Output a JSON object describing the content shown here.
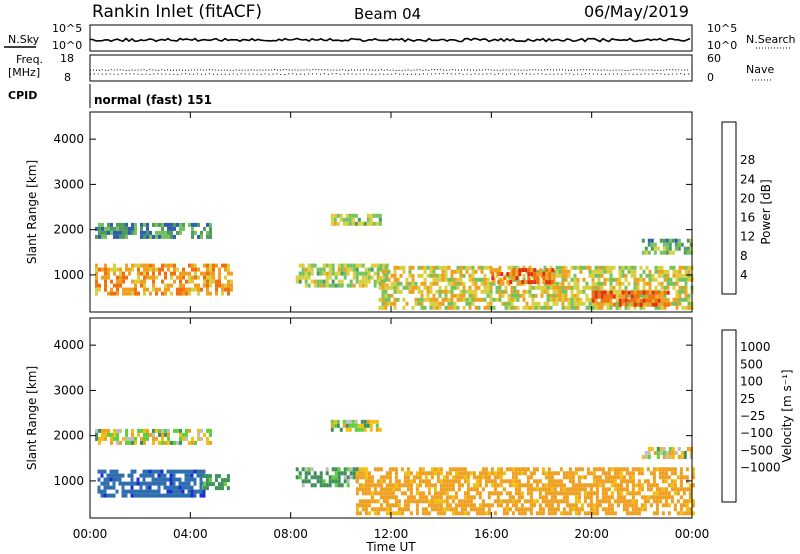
{
  "header": {
    "station": "Rankin Inlet (fitACF)",
    "beam": "Beam 04",
    "date": "06/May/2019"
  },
  "strip_labels": {
    "nsky": "N.Sky",
    "nsky_top": "10^5",
    "nsky_bottom": "10^0",
    "nsearch": "N.Search",
    "nsearch_top": "10^5",
    "nsearch_bottom": "10^0",
    "freq_line1": "Freq.",
    "freq_line2": "[MHz]",
    "freq_top": "18",
    "freq_bottom": "8",
    "nave": "Nave",
    "nave_top": "60",
    "nave_bottom": "0",
    "cpid": "CPID",
    "cpid_text": "normal (fast) 151"
  },
  "colorbars": {
    "power": {
      "label": "Power [dB]",
      "ticks": [
        "4",
        "8",
        "12",
        "16",
        "20",
        "24",
        "28"
      ],
      "colors": [
        "#1010e0",
        "#2f5fb0",
        "#4f9a5c",
        "#74c25e",
        "#d8d040",
        "#f0a020",
        "#f07010",
        "#e03010",
        "#e01010"
      ]
    },
    "velocity": {
      "label": "Velocity [m s⁻¹]",
      "ticks": [
        "1000",
        "500",
        "100",
        "25",
        "−25",
        "−100",
        "−500",
        "−1000"
      ],
      "colors": [
        "#1a2fd0",
        "#2f6fb0",
        "#3f8f5a",
        "#5fcf3a",
        "#bfbfbf",
        "#f0c010",
        "#f0a020",
        "#f07010",
        "#f03010",
        "#e01010"
      ]
    }
  },
  "chart_data": [
    {
      "type": "heatmap",
      "title": "",
      "ylabel": "Slant Range [km]",
      "xlabel": "",
      "quantity": "Power [dB]",
      "ylim": [
        180,
        4600
      ],
      "xlim": [
        0,
        24
      ],
      "yticks": [
        "1000",
        "2000",
        "3000",
        "4000"
      ],
      "yticks_values": [
        1000,
        2000,
        3000,
        4000
      ],
      "xticks": [
        "00:00",
        "04:00",
        "08:00",
        "12:00",
        "16:00",
        "20:00",
        "00:00"
      ],
      "regions": [
        {
          "t": [
            0.2,
            4.8
          ],
          "r": [
            1850,
            2150
          ],
          "v": 10
        },
        {
          "t": [
            9.6,
            11.6
          ],
          "r": [
            2100,
            2350
          ],
          "v": 16
        },
        {
          "t": [
            0.2,
            5.6
          ],
          "r": [
            600,
            1250
          ],
          "v": 22
        },
        {
          "t": [
            8.2,
            11.8
          ],
          "r": [
            800,
            1250
          ],
          "v": 16
        },
        {
          "t": [
            11.5,
            24.0
          ],
          "r": [
            300,
            1200
          ],
          "v": 18
        },
        {
          "t": [
            16.0,
            18.5
          ],
          "r": [
            850,
            1150
          ],
          "v": 26
        },
        {
          "t": [
            20.0,
            23.0
          ],
          "r": [
            350,
            650
          ],
          "v": 26
        },
        {
          "t": [
            22.0,
            24.0
          ],
          "r": [
            1500,
            1800
          ],
          "v": 12
        }
      ]
    },
    {
      "type": "heatmap",
      "title": "",
      "ylabel": "Slant Range [km]",
      "xlabel": "Time UT",
      "quantity": "Velocity [m s⁻¹]",
      "ylim": [
        180,
        4600
      ],
      "xlim": [
        0,
        24
      ],
      "yticks": [
        "1000",
        "2000",
        "3000",
        "4000"
      ],
      "yticks_values": [
        1000,
        2000,
        3000,
        4000
      ],
      "xticks": [
        "00:00",
        "04:00",
        "08:00",
        "12:00",
        "16:00",
        "20:00",
        "00:00"
      ],
      "regions": [
        {
          "t": [
            0.2,
            4.8
          ],
          "r": [
            1850,
            2150
          ],
          "v": 0
        },
        {
          "t": [
            9.6,
            11.6
          ],
          "r": [
            2100,
            2350
          ],
          "v": 0
        },
        {
          "t": [
            0.3,
            4.5
          ],
          "r": [
            650,
            1250
          ],
          "v": 900
        },
        {
          "t": [
            4.5,
            5.5
          ],
          "r": [
            850,
            1150
          ],
          "v": 200
        },
        {
          "t": [
            8.2,
            10.6
          ],
          "r": [
            900,
            1300
          ],
          "v": 150
        },
        {
          "t": [
            10.6,
            24.0
          ],
          "r": [
            300,
            1300
          ],
          "v": -200
        },
        {
          "t": [
            22.0,
            24.0
          ],
          "r": [
            1500,
            1750
          ],
          "v": 0
        }
      ]
    }
  ]
}
